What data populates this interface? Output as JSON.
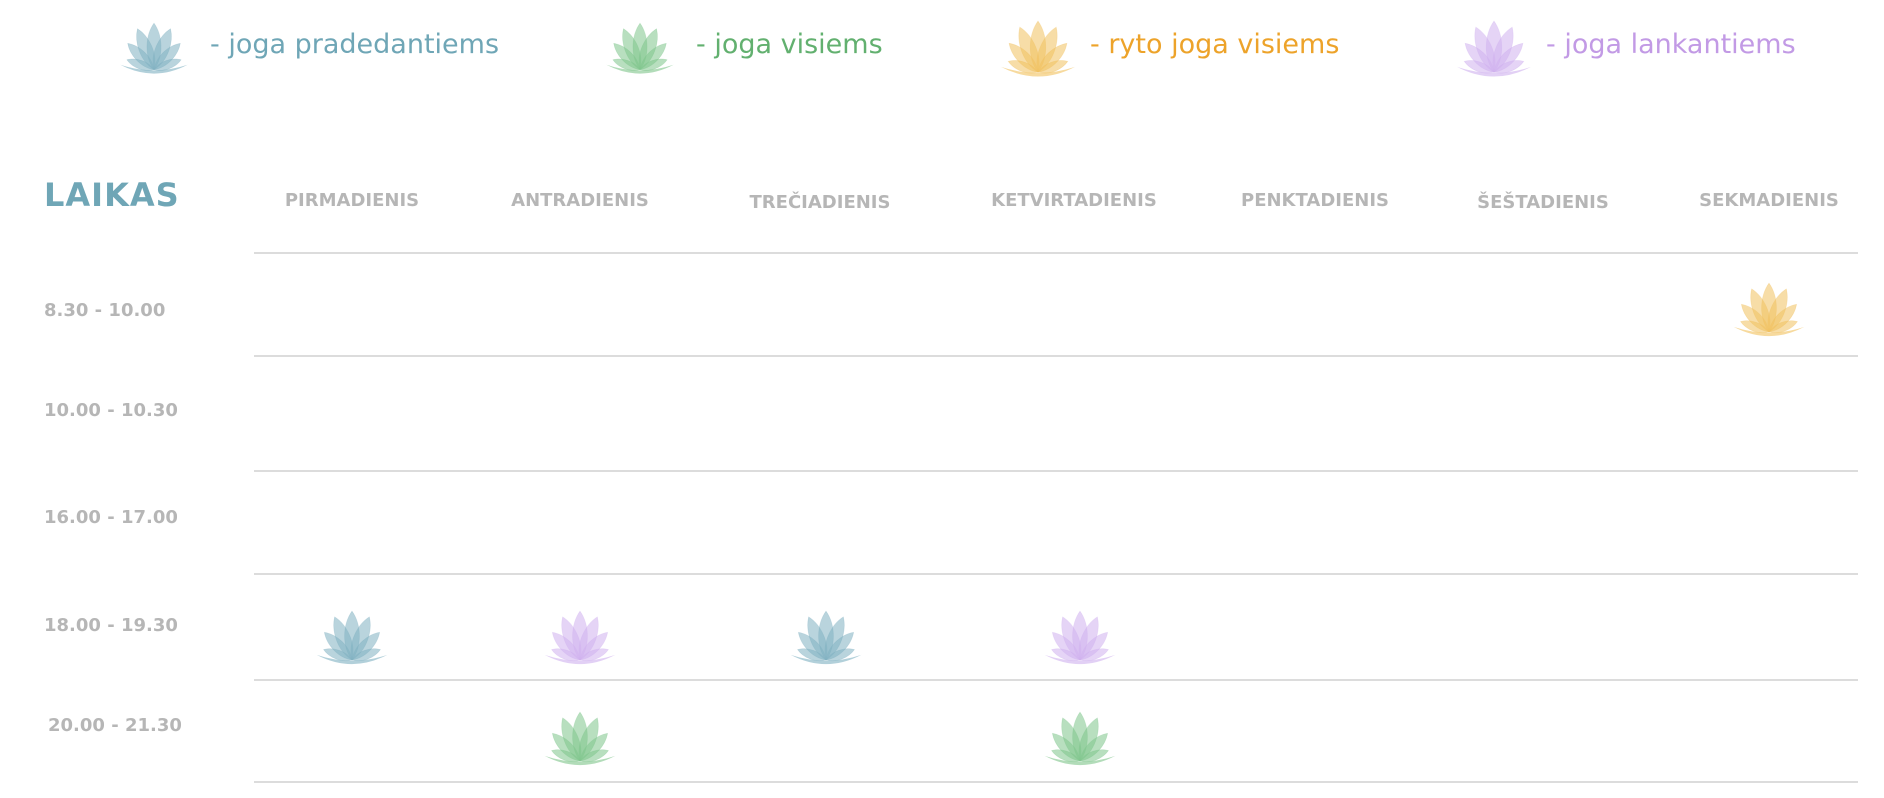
{
  "legend": [
    {
      "type": "pradedantiems",
      "label": "- joga pradedantiems",
      "color": "#6fa6b6",
      "lotus_color": "#7fb0c1"
    },
    {
      "type": "visiems",
      "label": "- joga visiems",
      "color": "#62b06f",
      "lotus_color": "#7ec58b"
    },
    {
      "type": "ryto",
      "label": "- ryto joga visiems",
      "color": "#eda32a",
      "lotus_color": "#f1c15e"
    },
    {
      "type": "lankantiems",
      "label": "- joga lankantiems",
      "color": "#c29ae5",
      "lotus_color": "#cfb0ee"
    }
  ],
  "table": {
    "header_label": "LAIKAS",
    "days": [
      "PIRMADIENIS",
      "ANTRADIENIS",
      "TREČIADIENIS",
      "KETVIRTADIENIS",
      "PENKTADIENIS",
      "ŠEŠTADIENIS",
      "SEKMADIENIS"
    ],
    "times": [
      "8.30 - 10.00",
      "10.00 - 10.30",
      "16.00 - 17.00",
      "18.00 - 19.30",
      "20.00 - 21.30"
    ],
    "sessions": [
      {
        "time": "8.30 - 10.00",
        "day": "SEKMADIENIS",
        "type": "ryto"
      },
      {
        "time": "18.00 - 19.30",
        "day": "PIRMADIENIS",
        "type": "pradedantiems"
      },
      {
        "time": "18.00 - 19.30",
        "day": "ANTRADIENIS",
        "type": "lankantiems"
      },
      {
        "time": "18.00 - 19.30",
        "day": "TREČIADIENIS",
        "type": "pradedantiems"
      },
      {
        "time": "18.00 - 19.30",
        "day": "KETVIRTADIENIS",
        "type": "lankantiems"
      },
      {
        "time": "20.00 - 21.30",
        "day": "ANTRADIENIS",
        "type": "visiems"
      },
      {
        "time": "20.00 - 21.30",
        "day": "KETVIRTADIENIS",
        "type": "visiems"
      }
    ]
  }
}
